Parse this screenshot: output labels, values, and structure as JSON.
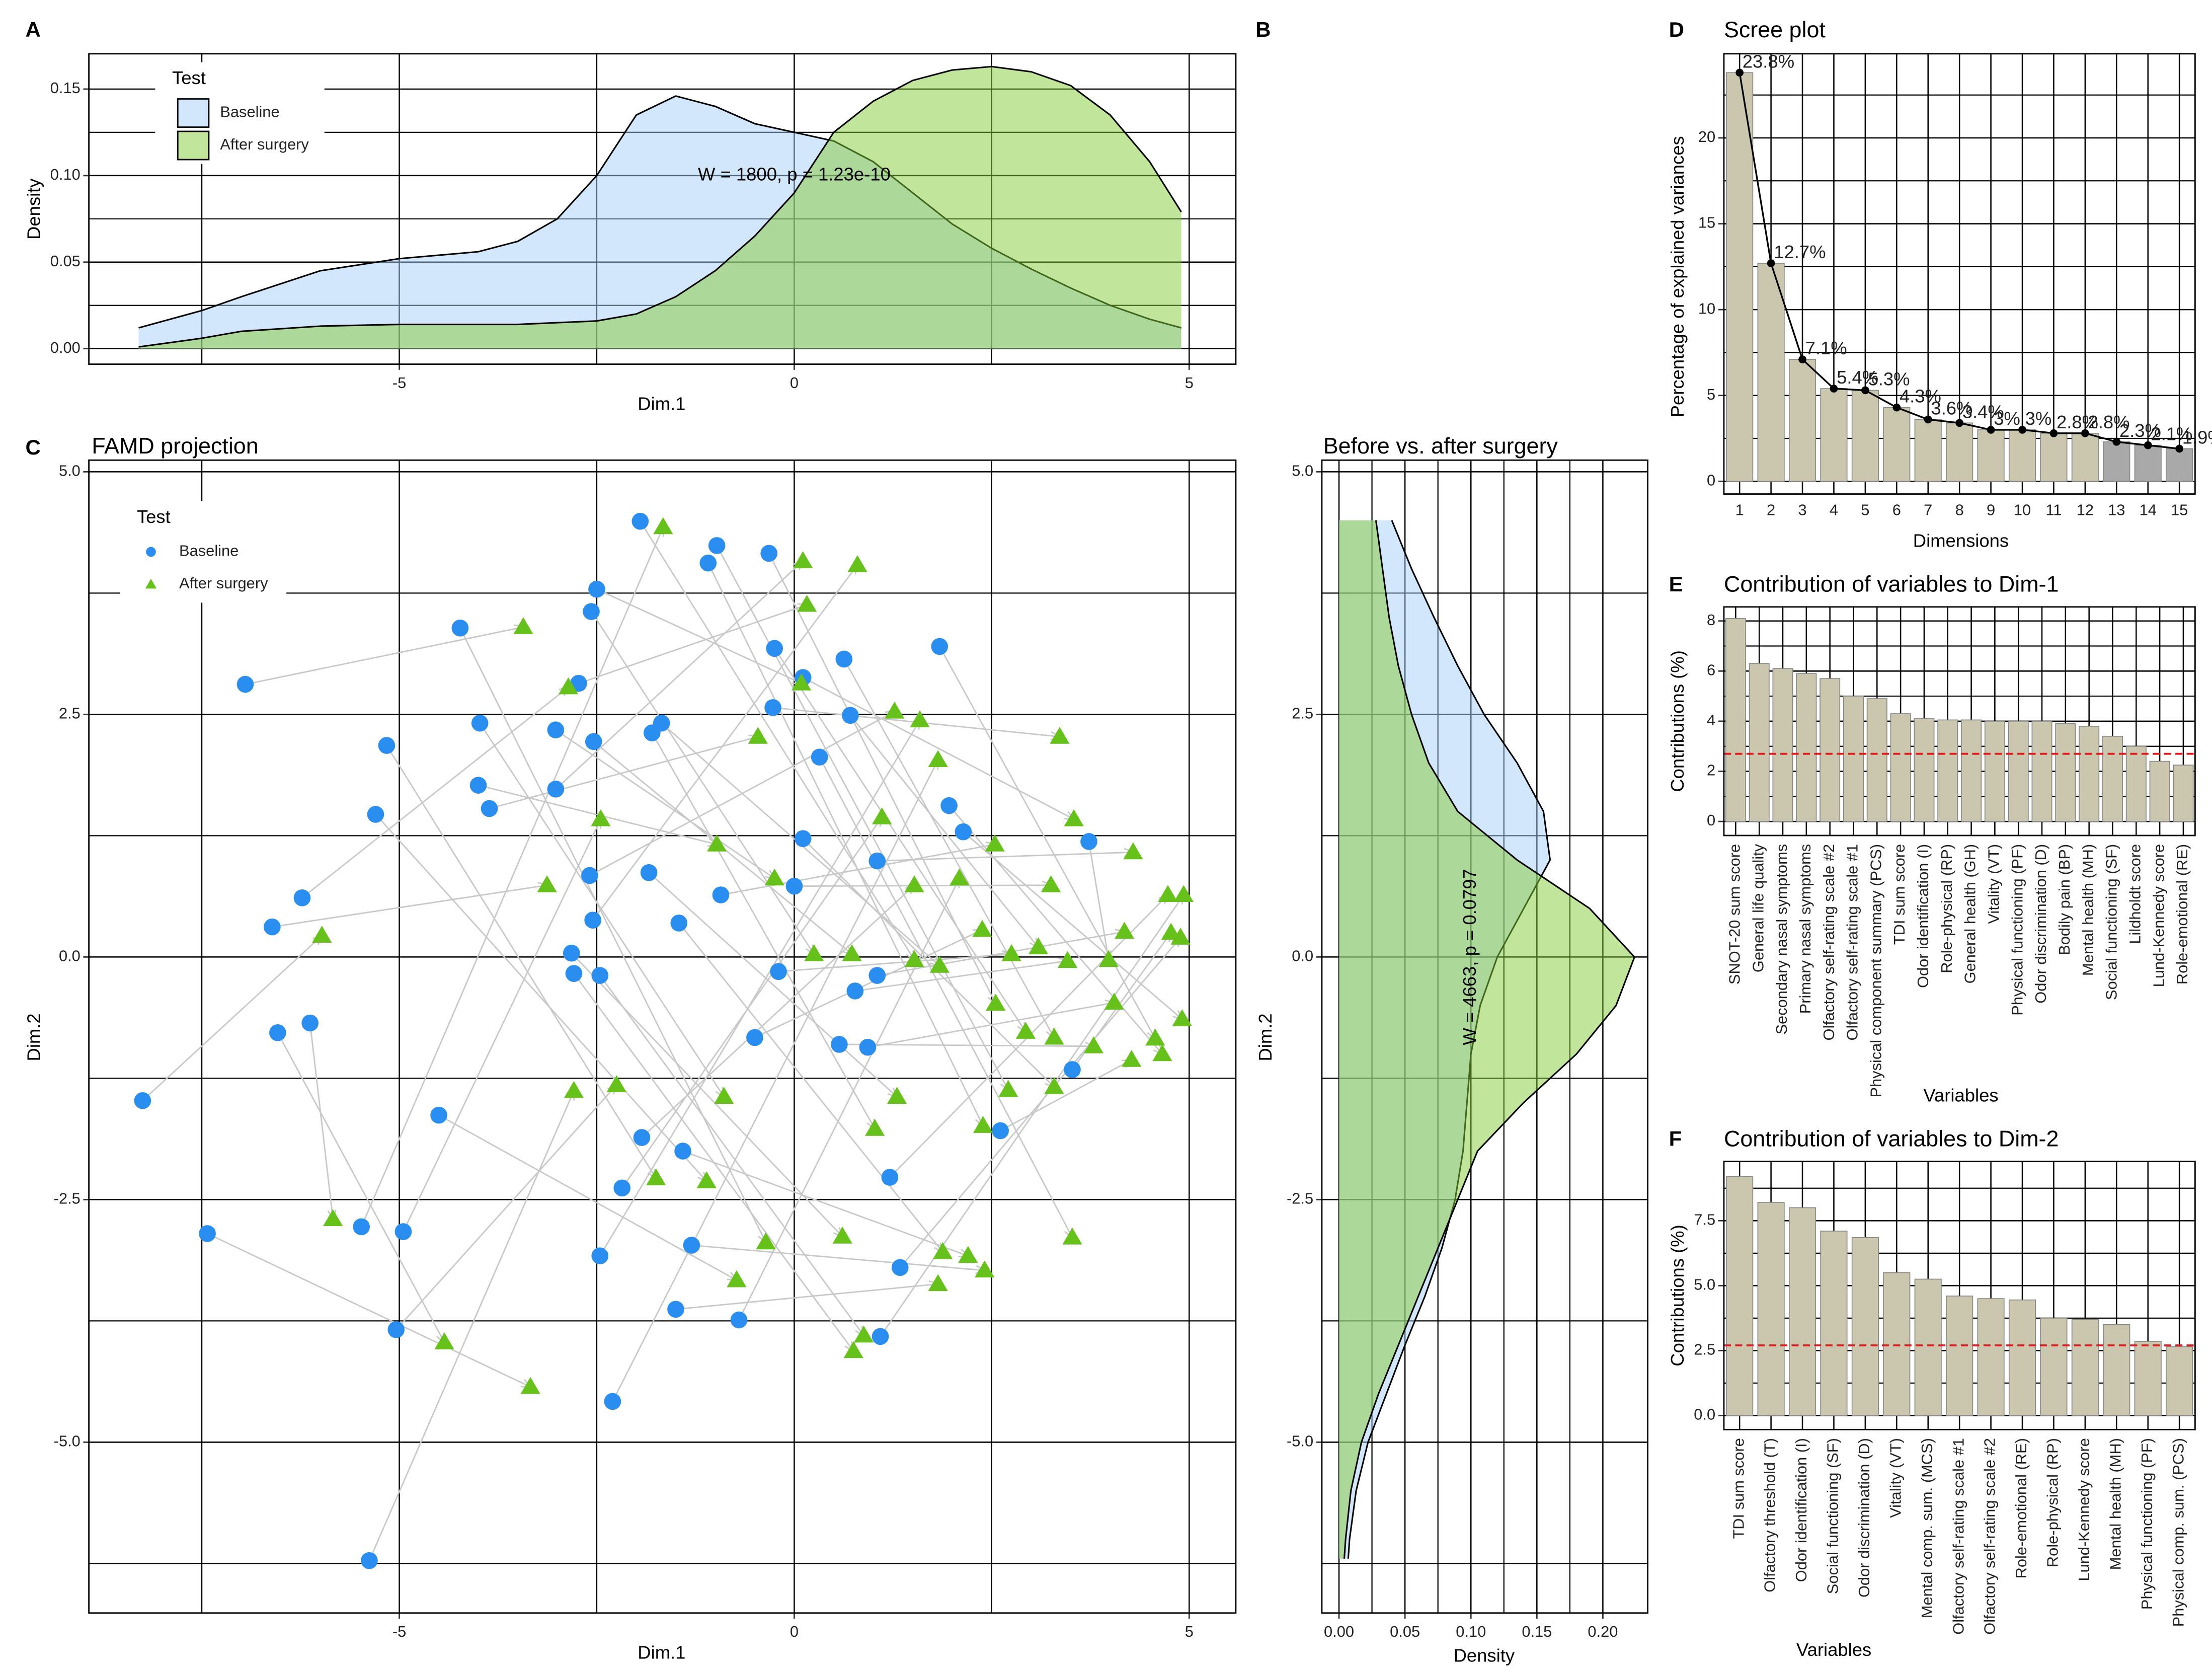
{
  "chart_data": [
    {
      "type": "density",
      "panel": "A",
      "xlabel": "Dim.1",
      "ylabel": "Density",
      "legend_title": "Test",
      "xlim": [
        -8.93,
        5.59
      ],
      "ylim": [
        -0.009,
        0.1704
      ],
      "xticks": [
        -5,
        0,
        5
      ],
      "yticks": [
        {
          "value": 0,
          "label": "0.00"
        },
        {
          "value": 0.05,
          "label": "0.05"
        },
        {
          "value": 0.1,
          "label": "0.10"
        },
        {
          "value": 0.15,
          "label": "0.15"
        }
      ],
      "xminor": [
        -7.5,
        -2.5,
        2.5
      ],
      "yminor": [
        0.025,
        0.075,
        0.125
      ],
      "grid": true,
      "annotation": {
        "text": "W = 1800, p = 1.23e-10",
        "x": 0,
        "y": 0.1
      },
      "series": [
        {
          "name": "Baseline",
          "color": "#a6cff8",
          "x": [
            -8.3,
            -7.5,
            -7,
            -6,
            -5,
            -4,
            -3.5,
            -3,
            -2.5,
            -2,
            -1.5,
            -1,
            -0.5,
            0,
            0.5,
            1,
            1.5,
            2,
            2.5,
            3,
            3.5,
            4,
            4.5,
            4.9
          ],
          "values": [
            0.012,
            0.022,
            0.03,
            0.045,
            0.052,
            0.056,
            0.062,
            0.075,
            0.1,
            0.135,
            0.146,
            0.14,
            0.13,
            0.125,
            0.12,
            0.108,
            0.09,
            0.072,
            0.058,
            0.046,
            0.035,
            0.025,
            0.017,
            0.012
          ]
        },
        {
          "name": "After surgery",
          "color": "#86cc3a",
          "x": [
            -8.3,
            -7.5,
            -7,
            -6,
            -5,
            -4,
            -3.5,
            -3,
            -2.5,
            -2,
            -1.5,
            -1,
            -0.5,
            0,
            0.5,
            1,
            1.5,
            2,
            2.5,
            3,
            3.5,
            4,
            4.5,
            4.9
          ],
          "values": [
            0.001,
            0.006,
            0.01,
            0.013,
            0.014,
            0.014,
            0.014,
            0.015,
            0.016,
            0.02,
            0.03,
            0.045,
            0.065,
            0.09,
            0.125,
            0.143,
            0.155,
            0.161,
            0.163,
            0.16,
            0.152,
            0.135,
            0.108,
            0.079
          ]
        }
      ]
    },
    {
      "type": "density_h",
      "panel": "B",
      "title": "Before vs. after surgery",
      "xlabel": "Density",
      "ylabel": "Dim.2",
      "xlim": [
        -0.013,
        0.234
      ],
      "ylim": [
        -6.76,
        5.12
      ],
      "xticks": [
        {
          "value": 0,
          "label": "0.00"
        },
        {
          "value": 0.05,
          "label": "0.05"
        },
        {
          "value": 0.1,
          "label": "0.10"
        },
        {
          "value": 0.15,
          "label": "0.15"
        },
        {
          "value": 0.2,
          "label": "0.20"
        }
      ],
      "yticks": [
        {
          "value": 5,
          "label": "5.0"
        },
        {
          "value": 2.5,
          "label": "2.5"
        },
        {
          "value": 0,
          "label": "0.0"
        },
        {
          "value": -2.5,
          "label": "-2.5"
        },
        {
          "value": -5,
          "label": "-5.0"
        }
      ],
      "xminor": [
        0.025,
        0.075,
        0.125,
        0.175
      ],
      "yminor": [
        3.75,
        1.25,
        -1.25,
        -3.75,
        -6.25
      ],
      "grid": true,
      "annotation": {
        "text": "W = 4663, p = 0.0797",
        "x": 0.1,
        "y": 0
      },
      "series": [
        {
          "name": "Baseline",
          "color": "#a6cff8",
          "y": [
            4.5,
            4,
            3.5,
            3,
            2.5,
            2,
            1.5,
            1,
            0.5,
            0,
            -0.5,
            -1,
            -1.5,
            -2,
            -2.5,
            -3,
            -3.5,
            -4,
            -4.5,
            -5,
            -5.5,
            -6,
            -6.2
          ],
          "values": [
            0.04,
            0.055,
            0.072,
            0.09,
            0.11,
            0.135,
            0.155,
            0.16,
            0.14,
            0.12,
            0.107,
            0.1,
            0.097,
            0.094,
            0.088,
            0.078,
            0.065,
            0.05,
            0.036,
            0.022,
            0.013,
            0.008,
            0.007
          ]
        },
        {
          "name": "After surgery",
          "color": "#86cc3a",
          "y": [
            4.5,
            4,
            3.5,
            3,
            2.5,
            2,
            1.5,
            1,
            0.5,
            0,
            -0.5,
            -1,
            -1.5,
            -2,
            -2.5,
            -3,
            -3.5,
            -4,
            -4.5,
            -5,
            -5.5,
            -6,
            -6.2
          ],
          "values": [
            0.028,
            0.033,
            0.038,
            0.045,
            0.055,
            0.068,
            0.09,
            0.135,
            0.19,
            0.224,
            0.21,
            0.18,
            0.14,
            0.105,
            0.09,
            0.075,
            0.06,
            0.045,
            0.03,
            0.017,
            0.009,
            0.005,
            0.004
          ]
        }
      ]
    },
    {
      "type": "scatter_arrows",
      "panel": "C",
      "title": "FAMD projection",
      "xlabel": "Dim.1",
      "ylabel": "Dim.2",
      "legend_title": "Test",
      "xlim": [
        -8.93,
        5.59
      ],
      "ylim": [
        -6.76,
        5.12
      ],
      "xticks": [
        -5,
        0,
        5
      ],
      "yticks": [
        {
          "value": 5,
          "label": "5.0"
        },
        {
          "value": 2.5,
          "label": "2.5"
        },
        {
          "value": 0,
          "label": "0.0"
        },
        {
          "value": -2.5,
          "label": "-2.5"
        },
        {
          "value": -5,
          "label": "-5.0"
        }
      ],
      "xminor": [
        -7.5,
        -2.5,
        2.5
      ],
      "yminor": [
        3.75,
        1.25,
        -1.25,
        -3.75,
        -6.25
      ],
      "grid": true,
      "arrow_color": "#c8c8c8",
      "series": [
        {
          "name": "Baseline",
          "color": "#2a8ef0",
          "marker": "circle",
          "x": [
            -6.95,
            -6.23,
            -6.61,
            -8.25,
            -6.13,
            -6.54,
            -7.43,
            -5.38,
            -5.04,
            -5.48,
            -4.95,
            -5.16,
            -5.3,
            -4.5,
            -4.23,
            -3.98,
            -4.0,
            -3.86,
            -3.02,
            -3.02,
            -2.73,
            -2.5,
            -2.57,
            -2.54,
            -2.82,
            -2.79,
            -2.46,
            -2.55,
            -2.59,
            -2.46,
            -2.3,
            -2.18,
            -1.93,
            -1.95,
            -1.68,
            -1.8,
            -1.84,
            -1.46,
            -1.41,
            -1.3,
            -1.5,
            -1.09,
            -0.98,
            -0.93,
            -0.7,
            -0.5,
            -0.32,
            -0.25,
            -0.2,
            -0.27,
            0.11,
            0,
            0.11,
            0.32,
            0.63,
            0.71,
            0.77,
            0.57,
            0.93,
            1.05,
            1.05,
            1.21,
            1.34,
            1.09,
            1.84,
            1.96,
            2.14,
            2.61,
            3.52,
            3.73
          ],
          "y": [
            2.81,
            0.61,
            0.31,
            -1.48,
            -0.68,
            -0.78,
            -2.85,
            -6.22,
            -3.84,
            -2.78,
            -2.83,
            2.18,
            1.47,
            -1.63,
            3.39,
            2.41,
            1.77,
            1.53,
            2.34,
            1.73,
            2.82,
            3.79,
            3.56,
            2.22,
            0.04,
            -0.17,
            -0.19,
            0.38,
            0.84,
            -3.08,
            -4.58,
            -2.38,
            -1.86,
            4.49,
            2.41,
            2.31,
            0.87,
            0.35,
            -2.0,
            -2.97,
            -3.63,
            4.06,
            4.24,
            0.64,
            -3.74,
            -0.83,
            4.16,
            3.18,
            -0.15,
            2.57,
            2.88,
            0.73,
            1.22,
            2.06,
            3.07,
            2.49,
            -0.35,
            -0.9,
            -0.93,
            -0.19,
            0.99,
            -2.27,
            -3.2,
            -3.91,
            3.2,
            1.56,
            1.29,
            -1.79,
            -1.16,
            1.19
          ]
        },
        {
          "name": "After surgery",
          "color": "#66c21a",
          "marker": "triangle",
          "x": [
            -3.43,
            -2.86,
            -3.13,
            -5.98,
            -5.84,
            -4.43,
            -3.34,
            -2.79,
            -2.25,
            -1.66,
            -2.45,
            -1.75,
            -1.11,
            -0.73,
            -0.36,
            -0.89,
            -0.98,
            -0.46,
            -0.25,
            0.11,
            0.16,
            0.09,
            0.25,
            0.73,
            0.61,
            0.75,
            0.88,
            0.8,
            1.27,
            1.59,
            1.82,
            1.11,
            1.52,
            1.52,
            1.84,
            1.02,
            1.3,
            1.88,
            2.2,
            2.41,
            1.82,
            2.39,
            2.71,
            2.54,
            2.09,
            2.38,
            2.55,
            2.93,
            2.75,
            3.36,
            3.54,
            3.25,
            3.29,
            3.52,
            3.29,
            3.09,
            3.46,
            3.79,
            4.05,
            4.18,
            4.29,
            4.73,
            4.89,
            4.93,
            4.57,
            4.66,
            4.91,
            4.27,
            4.77,
            3.98
          ],
          "y": [
            3.4,
            2.78,
            0.74,
            0.22,
            -2.7,
            -3.97,
            -4.43,
            -1.38,
            -1.32,
            4.43,
            1.42,
            -2.28,
            -2.31,
            -3.33,
            -2.94,
            -1.44,
            1.16,
            2.27,
            0.81,
            4.08,
            3.63,
            2.82,
            0.03,
            0.03,
            -2.88,
            -4.06,
            -3.9,
            4.04,
            2.53,
            2.44,
            2.03,
            1.44,
            0.74,
            -0.03,
            -0.09,
            -1.77,
            -1.44,
            -3.04,
            -3.08,
            -3.23,
            -3.37,
            -1.74,
            -1.37,
            1.16,
            0.81,
            0.28,
            -0.48,
            -0.77,
            0.03,
            2.27,
            1.42,
            0.74,
            -1.34,
            -2.89,
            -0.83,
            0.1,
            -0.04,
            -0.92,
            -0.47,
            0.26,
            1.08,
            0.64,
            0.2,
            0.64,
            -0.84,
            -1.0,
            -0.64,
            -1.06,
            0.25,
            -0.03
          ]
        }
      ]
    },
    {
      "type": "bar",
      "panel": "D",
      "title": "Scree plot",
      "xlabel": "Dimensions",
      "ylabel": "Percentage of explained variances",
      "categories": [
        "1",
        "2",
        "3",
        "4",
        "5",
        "6",
        "7",
        "8",
        "9",
        "10",
        "11",
        "12",
        "13",
        "14",
        "15"
      ],
      "values": [
        23.8,
        12.7,
        7.1,
        5.4,
        5.3,
        4.3,
        3.6,
        3.4,
        3.0,
        3.0,
        2.8,
        2.8,
        2.3,
        2.1,
        1.9
      ],
      "value_labels": [
        "23.8%",
        "12.7%",
        "7.1%",
        "5.4%",
        "5.3%",
        "4.3%",
        "3.6%",
        "3.4%",
        "3%",
        "3%",
        "2.8%",
        "2.8%",
        "2.3%",
        "2.1%",
        "1.9%"
      ],
      "colors": [
        "#cbc6ae",
        "#cbc6ae",
        "#cbc6ae",
        "#cbc6ae",
        "#cbc6ae",
        "#cbc6ae",
        "#cbc6ae",
        "#cbc6ae",
        "#cbc6ae",
        "#cbc6ae",
        "#cbc6ae",
        "#cbc6ae",
        "#a9a9a9",
        "#a9a9a9",
        "#a9a9a9"
      ],
      "line": true,
      "ylim": [
        -0.74,
        24.9
      ],
      "yticks": [
        0,
        5,
        10,
        15,
        20
      ],
      "yminor": [
        2.5,
        7.5,
        12.5,
        17.5,
        22.5
      ],
      "grid": true
    },
    {
      "type": "bar",
      "panel": "E",
      "title": "Contribution of variables to Dim-1",
      "xlabel": "Variables",
      "ylabel": "Contributions (%)",
      "categories": [
        "SNOT-20 sum score",
        "General life quality",
        "Secondary nasal symptoms",
        "Primary nasal symptoms",
        "Olfactory self-rating scale #2",
        "Olfactory self-rating scale #1",
        "Physical component summary (PCS)",
        "TDI sum score",
        "Odor identification (I)",
        "Role-physical (RP)",
        "General health (GH)",
        "Vitality (VT)",
        "Physical functioning (PF)",
        "Odor discrimination (D)",
        "Bodily pain (BP)",
        "Mental health (MH)",
        "Social functioning (SF)",
        "Lildholdt score",
        "Lund-Kennedy score",
        "Role-emotional (RE)"
      ],
      "values": [
        8.1,
        6.3,
        6.1,
        5.9,
        5.7,
        5.0,
        4.9,
        4.3,
        4.1,
        4.05,
        4.05,
        4.0,
        4.0,
        4.0,
        3.9,
        3.8,
        3.4,
        3.0,
        2.4,
        2.25
      ],
      "color": "#cbc6ae",
      "reference_line": 2.7,
      "reference_color": "#e31a1c",
      "ylim": [
        -0.56,
        8.56
      ],
      "yticks": [
        0,
        2,
        4,
        6,
        8
      ],
      "yminor": [
        1,
        3,
        5,
        7
      ],
      "grid": true
    },
    {
      "type": "bar",
      "panel": "F",
      "title": "Contribution of variables to Dim-2",
      "xlabel": "Variables",
      "ylabel": "Contributions (%)",
      "categories": [
        "TDI sum score",
        "Olfactory threshold (T)",
        "Odor identification (I)",
        "Social functioning (SF)",
        "Odor discrimination (D)",
        "Vitality (VT)",
        "Mental comp. sum. (MCS)",
        "Olfactory self-rating scale #1",
        "Olfactory self-rating scale #2",
        "Role-emotional (RE)",
        "Role-physical (RP)",
        "Lund-Kennedy score",
        "Mental health (MH)",
        "Physical functioning (PF)",
        "Physical comp. sum. (PCS)"
      ],
      "values": [
        9.2,
        8.2,
        8.0,
        7.1,
        6.85,
        5.5,
        5.25,
        4.6,
        4.5,
        4.45,
        3.75,
        3.7,
        3.5,
        2.85,
        2.65
      ],
      "color": "#cbc6ae",
      "reference_line": 2.7,
      "reference_color": "#e31a1c",
      "ylim": [
        -0.54,
        9.78
      ],
      "yticks": [
        {
          "value": 0,
          "label": "0.0"
        },
        {
          "value": 2.5,
          "label": "2.5"
        },
        {
          "value": 5,
          "label": "5.0"
        },
        {
          "value": 7.5,
          "label": "7.5"
        }
      ],
      "yminor": [
        1.25,
        3.75,
        6.25,
        8.75
      ],
      "grid": true
    }
  ]
}
